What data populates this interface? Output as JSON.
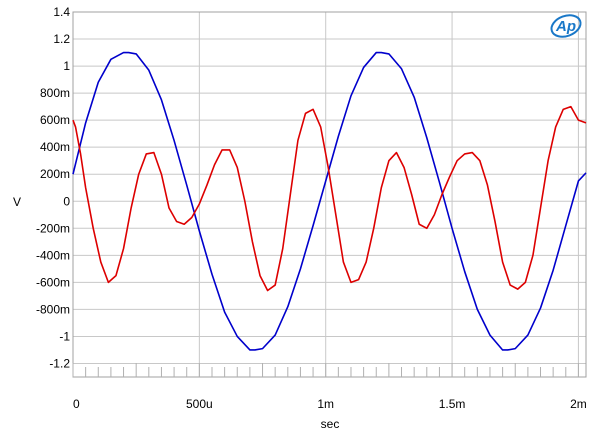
{
  "chart_data": {
    "type": "line",
    "title": "",
    "xlabel": "sec",
    "ylabel": "V",
    "xlim": [
      0,
      0.00203
    ],
    "ylim": [
      -1.3,
      1.4
    ],
    "grid": true,
    "logo_text": "Ap",
    "x_ticks": [
      {
        "value": 0,
        "label": "0"
      },
      {
        "value": 0.0005,
        "label": "500u"
      },
      {
        "value": 0.001,
        "label": "1m"
      },
      {
        "value": 0.0015,
        "label": "1.5m"
      },
      {
        "value": 0.002,
        "label": "2m"
      }
    ],
    "y_ticks": [
      {
        "value": 1.4,
        "label": "1.4"
      },
      {
        "value": 1.2,
        "label": "1.2"
      },
      {
        "value": 1.0,
        "label": "1"
      },
      {
        "value": 0.8,
        "label": "800m"
      },
      {
        "value": 0.6,
        "label": "600m"
      },
      {
        "value": 0.4,
        "label": "400m"
      },
      {
        "value": 0.2,
        "label": "200m"
      },
      {
        "value": 0.0,
        "label": "0"
      },
      {
        "value": -0.2,
        "label": "-200m"
      },
      {
        "value": -0.4,
        "label": "-400m"
      },
      {
        "value": -0.6,
        "label": "-600m"
      },
      {
        "value": -0.8,
        "label": "-800m"
      },
      {
        "value": -1.0,
        "label": "-1"
      },
      {
        "value": -1.2,
        "label": "-1.2"
      }
    ],
    "series": [
      {
        "color": "#0000cc",
        "x": [
          0,
          5e-05,
          0.0001,
          0.00015,
          0.0002,
          0.00022,
          0.00025,
          0.0003,
          0.00035,
          0.0004,
          0.00045,
          0.0005,
          0.00055,
          0.0006,
          0.00065,
          0.0007,
          0.00072,
          0.00075,
          0.0008,
          0.00085,
          0.0009,
          0.00095,
          0.001,
          0.00105,
          0.0011,
          0.00115,
          0.0012,
          0.00122,
          0.00125,
          0.0013,
          0.00135,
          0.0014,
          0.00145,
          0.0015,
          0.00155,
          0.0016,
          0.00165,
          0.0017,
          0.00172,
          0.00175,
          0.0018,
          0.00185,
          0.0019,
          0.00195,
          0.002,
          0.00203
        ],
        "y": [
          0.2,
          0.58,
          0.88,
          1.05,
          1.1,
          1.1,
          1.09,
          0.97,
          0.75,
          0.45,
          0.12,
          -0.22,
          -0.54,
          -0.82,
          -1.0,
          -1.1,
          -1.1,
          -1.09,
          -0.99,
          -0.78,
          -0.5,
          -0.18,
          0.15,
          0.48,
          0.78,
          0.99,
          1.1,
          1.1,
          1.09,
          0.98,
          0.77,
          0.47,
          0.14,
          -0.2,
          -0.52,
          -0.8,
          -0.99,
          -1.1,
          -1.1,
          -1.09,
          -0.99,
          -0.79,
          -0.51,
          -0.18,
          0.15,
          0.21
        ]
      },
      {
        "color": "#dd0000",
        "x": [
          0,
          1e-05,
          3e-05,
          5e-05,
          8e-05,
          0.00011,
          0.00014,
          0.00017,
          0.0002,
          0.00023,
          0.00026,
          0.00029,
          0.00032,
          0.00035,
          0.00038,
          0.00041,
          0.00044,
          0.00047,
          0.0005,
          0.00053,
          0.00056,
          0.00059,
          0.00062,
          0.00065,
          0.00068,
          0.00071,
          0.00074,
          0.00077,
          0.0008,
          0.00083,
          0.00086,
          0.00089,
          0.00092,
          0.00095,
          0.00098,
          0.00101,
          0.00104,
          0.00107,
          0.0011,
          0.00113,
          0.00116,
          0.00119,
          0.00122,
          0.00125,
          0.00128,
          0.00131,
          0.00134,
          0.00137,
          0.0014,
          0.00143,
          0.00146,
          0.00149,
          0.00152,
          0.00155,
          0.00158,
          0.00161,
          0.00164,
          0.00167,
          0.0017,
          0.00173,
          0.00176,
          0.00179,
          0.00182,
          0.00185,
          0.00188,
          0.00191,
          0.00194,
          0.00197,
          0.002,
          0.00203
        ],
        "y": [
          0.6,
          0.55,
          0.35,
          0.1,
          -0.2,
          -0.45,
          -0.6,
          -0.55,
          -0.35,
          -0.05,
          0.2,
          0.35,
          0.36,
          0.2,
          -0.05,
          -0.15,
          -0.17,
          -0.12,
          -0.02,
          0.12,
          0.27,
          0.38,
          0.38,
          0.25,
          0.0,
          -0.3,
          -0.55,
          -0.66,
          -0.62,
          -0.35,
          0.05,
          0.45,
          0.65,
          0.68,
          0.55,
          0.25,
          -0.1,
          -0.45,
          -0.6,
          -0.58,
          -0.45,
          -0.2,
          0.1,
          0.3,
          0.36,
          0.25,
          0.05,
          -0.17,
          -0.2,
          -0.1,
          0.05,
          0.18,
          0.3,
          0.35,
          0.36,
          0.3,
          0.12,
          -0.15,
          -0.45,
          -0.62,
          -0.65,
          -0.6,
          -0.4,
          -0.05,
          0.3,
          0.55,
          0.68,
          0.7,
          0.6,
          0.58
        ]
      }
    ]
  }
}
